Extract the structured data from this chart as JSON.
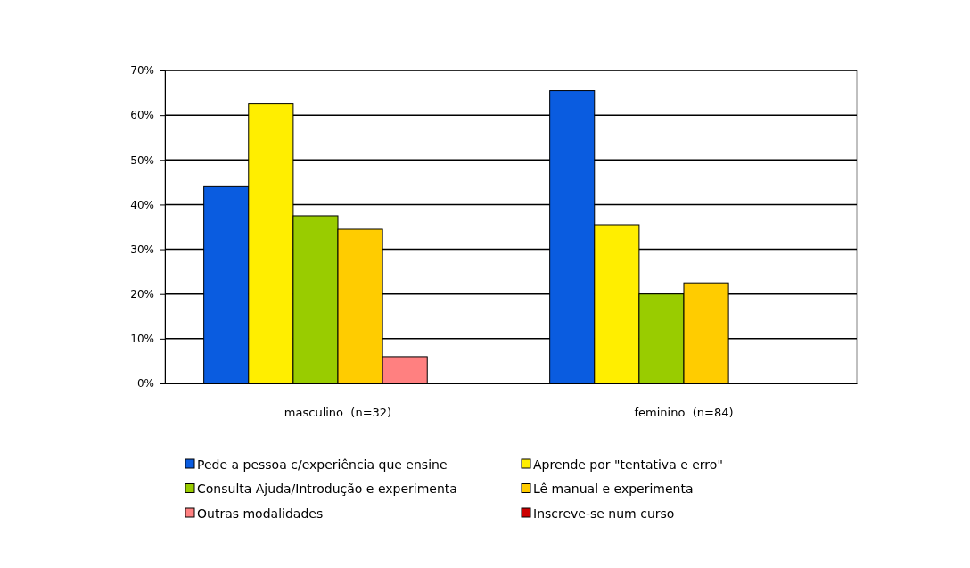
{
  "chart_data": {
    "type": "bar",
    "categories": [
      "masculino  (n=32)",
      "feminino  (n=84)"
    ],
    "series": [
      {
        "name": "Pede a pessoa c/experiência que ensine",
        "color": "#0a5ce0",
        "values": [
          44,
          65.5
        ]
      },
      {
        "name": "Aprende por \"tentativa e erro\"",
        "color": "#ffee00",
        "values": [
          62.5,
          35.5
        ]
      },
      {
        "name": "Consulta Ajuda/Introdução e experimenta",
        "color": "#99cc00",
        "values": [
          37.5,
          20
        ]
      },
      {
        "name": "Lê manual e experimenta",
        "color": "#ffcc00",
        "values": [
          34.5,
          22.5
        ]
      },
      {
        "name": "Outras modalidades",
        "color": "#ff8080",
        "values": [
          6,
          0
        ]
      },
      {
        "name": "Inscreve-se num curso",
        "color": "#cc0000",
        "values": [
          0,
          0
        ]
      }
    ],
    "ylim": [
      0,
      70
    ],
    "yticks": [
      {
        "value": 0,
        "label": "0%"
      },
      {
        "value": 10,
        "label": "10%"
      },
      {
        "value": 20,
        "label": "20%"
      },
      {
        "value": 30,
        "label": "30%"
      },
      {
        "value": 40,
        "label": "40%"
      },
      {
        "value": 50,
        "label": "50%"
      },
      {
        "value": 60,
        "label": "60%"
      },
      {
        "value": 70,
        "label": "70%"
      }
    ],
    "grid": true,
    "legend": "bottom"
  }
}
